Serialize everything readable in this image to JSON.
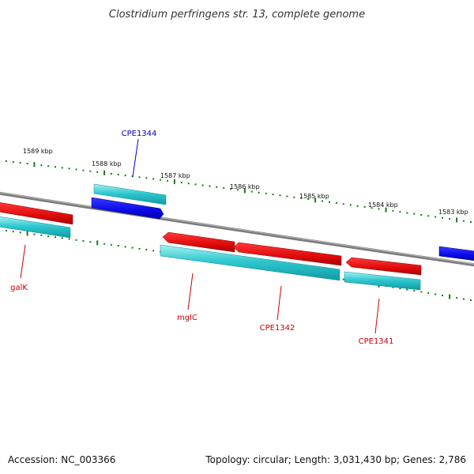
{
  "header": {
    "title": "Clostridium perfringens str. 13, complete genome"
  },
  "footer": {
    "accession": "Accession: NC_003366",
    "topology": "Topology: circular; Length: 3,031,430 bp; Genes: 2,786"
  },
  "colors": {
    "backbone": "#8a8a8a",
    "tick": "#1a7a1a",
    "gene_forward": "#e01010",
    "gene_reverse": "#1010e0",
    "cds": "#20c0c8",
    "label_forward": "#cc0000",
    "label_reverse": "#0000cc"
  },
  "scale_labels": [
    "1589 kbp",
    "1588 kbp",
    "1587 kbp",
    "1586 kbp",
    "1585 kbp",
    "1584 kbp",
    "1583 kbp"
  ],
  "genes": [
    {
      "name": "CPE1344",
      "strand": "reverse"
    },
    {
      "name": "galK",
      "strand": "forward"
    },
    {
      "name": "mglC",
      "strand": "forward"
    },
    {
      "name": "CPE1342",
      "strand": "forward"
    },
    {
      "name": "CPE1341",
      "strand": "forward"
    }
  ]
}
